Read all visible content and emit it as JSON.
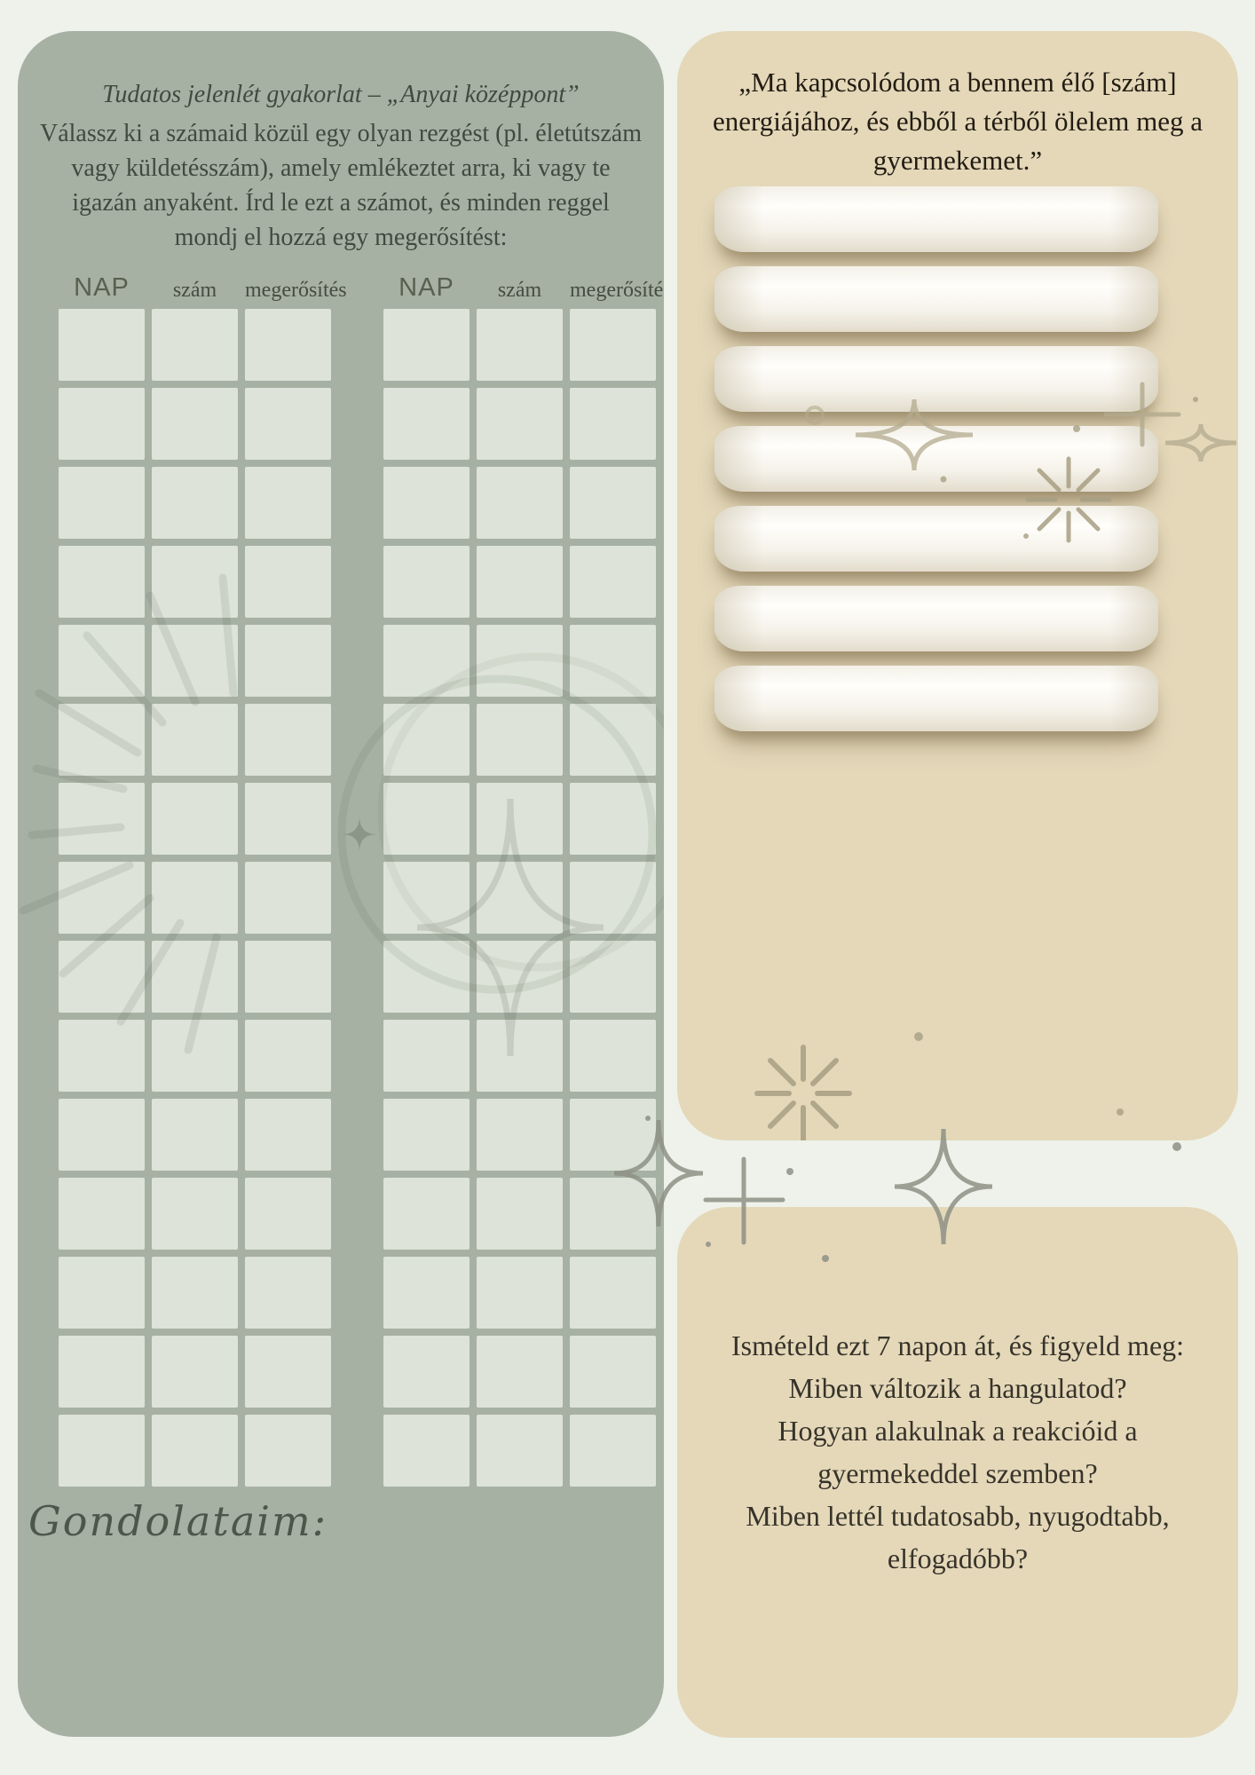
{
  "colors": {
    "page_bg": "#eef2ea",
    "panel_green": "#a6b1a3",
    "cell_bg": "#dde3d8",
    "panel_beige": "#e4d8b9",
    "ribbon_white": "#fffefb",
    "text_green_dark": "#3f4a40",
    "text_quote_dark": "#221c12",
    "text_reflection": "#37332a"
  },
  "left_panel": {
    "title": "Tudatos jelenlét gyakorlat – „Anyai középpont”",
    "intro_lines": [
      "Válassz ki a számaid közül egy olyan rezgést (pl. életútszám",
      "vagy küldetésszám), amely emlékeztet arra, ki vagy te",
      "igazán anyaként. Írd le ezt a számot, és minden reggel",
      "mondj el hozzá egy megerősítést:"
    ],
    "table_headers": [
      "NAP",
      "szám",
      "megerősítés"
    ],
    "table_rows": 15,
    "table_columns": 3,
    "cell_count": 45,
    "notes_label": "Gondolataim:"
  },
  "right_top_panel": {
    "quote_lines": [
      "„Ma kapcsolódom a bennem élő [szám]",
      "energiájához, és ebből a térből ölelem meg a",
      "gyermekemet.”"
    ],
    "ribbon_count": 7
  },
  "right_bottom_panel": {
    "reflection_lines": [
      "Ismételd ezt 7 napon át, és figyeld meg:",
      "Miben változik a hangulatod?",
      "Hogyan alakulnak a reakcióid a",
      "gyermekeddel szemben?",
      "Miben lettél tudatosabb, nyugodtabb,",
      "elfogadóbb?"
    ]
  }
}
